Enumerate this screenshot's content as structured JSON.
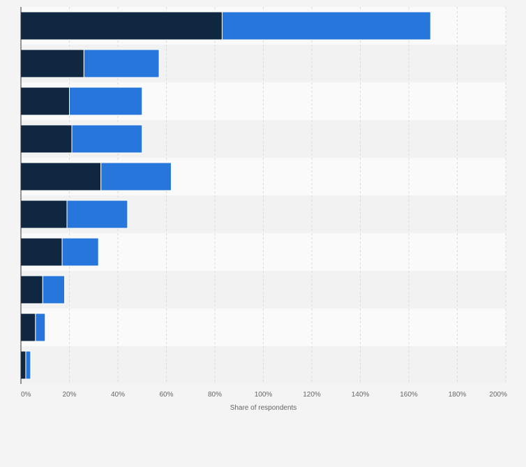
{
  "chart_data": {
    "type": "bar",
    "orientation": "horizontal",
    "stacked": true,
    "title": "",
    "xlabel": "Share of respondents",
    "ylabel": "",
    "xlim": [
      0,
      200
    ],
    "xticks": [
      "0%",
      "20%",
      "40%",
      "60%",
      "80%",
      "100%",
      "120%",
      "140%",
      "160%",
      "180%",
      "200%"
    ],
    "grid": true,
    "categories": [
      "",
      "",
      "",
      "",
      "",
      "",
      "",
      "",
      "",
      ""
    ],
    "series": [
      {
        "name": "",
        "color": "#0f2740",
        "values": [
          83,
          26,
          20,
          21,
          33,
          19,
          17,
          9,
          6,
          2
        ]
      },
      {
        "name": "",
        "color": "#2776dc",
        "values": [
          86,
          31,
          30,
          29,
          29,
          25,
          15,
          9,
          4,
          2
        ]
      }
    ]
  },
  "colors": {
    "background": "#f4f4f4",
    "band_light": "#fafafa",
    "band_dark": "#f2f2f2",
    "grid": "#d9d9d9"
  }
}
